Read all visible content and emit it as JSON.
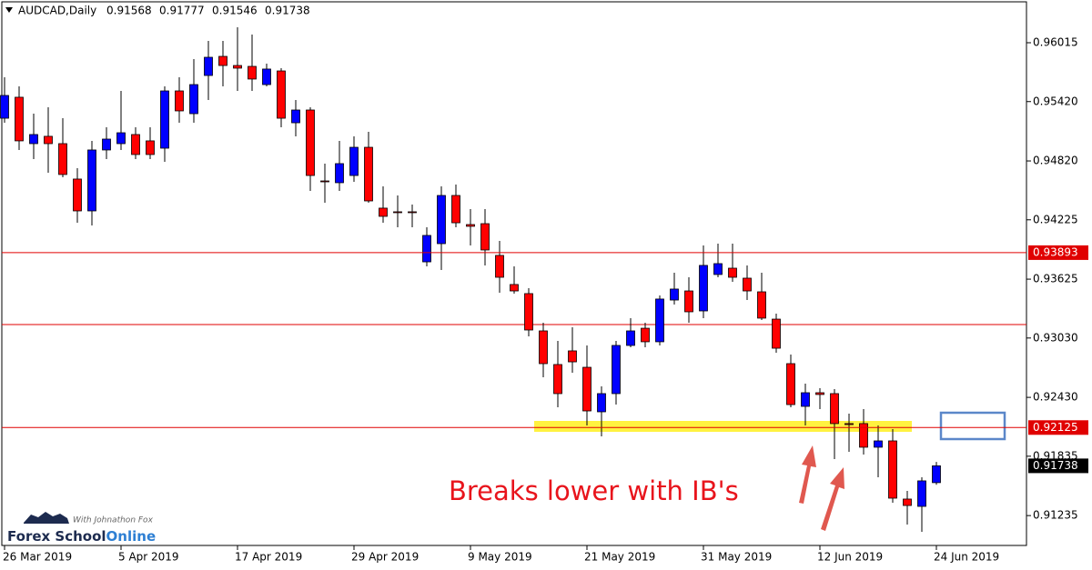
{
  "chart_data": {
    "type": "candlestick",
    "title": "AUDCAD,Daily",
    "categories": [
      "26 Mar 2019",
      null,
      null,
      null,
      null,
      null,
      null,
      null,
      "5 Apr 2019",
      null,
      null,
      null,
      null,
      null,
      null,
      null,
      "17 Apr 2019",
      null,
      null,
      null,
      null,
      null,
      null,
      null,
      "29 Apr 2019",
      null,
      null,
      null,
      null,
      null,
      null,
      null,
      "9 May 2019",
      null,
      null,
      null,
      null,
      null,
      null,
      null,
      "21 May 2019",
      null,
      null,
      null,
      null,
      null,
      null,
      null,
      "31 May 2019",
      null,
      null,
      null,
      null,
      null,
      null,
      null,
      "12 Jun 2019",
      null,
      null,
      null,
      null,
      null,
      null,
      null,
      "24 Jun 2019"
    ],
    "open": [
      0.95252,
      0.95464,
      0.94995,
      0.95069,
      0.94995,
      0.94637,
      0.94315,
      0.94931,
      0.94995,
      0.95087,
      0.95023,
      0.94949,
      0.95528,
      0.95298,
      0.95684,
      0.95877,
      0.95785,
      0.95776,
      0.95592,
      0.9573,
      0.95206,
      0.95335,
      0.94618,
      0.946,
      0.94673,
      0.94958,
      0.94343,
      0.94306,
      0.94306,
      0.938,
      0.93984,
      0.94471,
      0.94177,
      0.94186,
      0.93865,
      0.93571,
      0.93479,
      0.93102,
      0.92762,
      0.929,
      0.92734,
      0.92284,
      0.92468,
      0.92955,
      0.93129,
      0.92992,
      0.93414,
      0.93506,
      0.93304,
      0.93672,
      0.93736,
      0.93635,
      0.93497,
      0.93221,
      0.92771,
      0.92339,
      0.92477,
      0.92468,
      0.92165,
      0.92165,
      0.91926,
      0.9199,
      0.91402,
      0.91328,
      0.91568
    ],
    "high": [
      0.95666,
      0.95574,
      0.95298,
      0.95363,
      0.95252,
      0.94747,
      0.95023,
      0.9516,
      0.95528,
      0.9516,
      0.9516,
      0.95574,
      0.95666,
      0.9585,
      0.96033,
      0.96033,
      0.96171,
      0.96098,
      0.95804,
      0.95758,
      0.95436,
      0.95363,
      0.94793,
      0.95023,
      0.95069,
      0.95114,
      0.94563,
      0.94471,
      0.94379,
      0.9415,
      0.94563,
      0.94581,
      0.94333,
      0.94333,
      0.94012,
      0.93754,
      0.93534,
      0.93185,
      0.93001,
      0.93139,
      0.92955,
      0.92541,
      0.93001,
      0.93231,
      0.93185,
      0.9346,
      0.9369,
      0.93644,
      0.93966,
      0.93984,
      0.93984,
      0.93764,
      0.9369,
      0.93276,
      0.92863,
      0.92569,
      0.92523,
      0.92514,
      0.92266,
      0.92312,
      0.92146,
      0.92109,
      0.91484,
      0.91622,
      0.91777
    ],
    "low": [
      0.95206,
      0.94931,
      0.94839,
      0.94701,
      0.94655,
      0.94195,
      0.94168,
      0.94839,
      0.94931,
      0.94839,
      0.94839,
      0.94811,
      0.95206,
      0.95206,
      0.95436,
      0.95574,
      0.95528,
      0.95528,
      0.95574,
      0.9516,
      0.95069,
      0.94517,
      0.94398,
      0.94517,
      0.94609,
      0.94398,
      0.94195,
      0.9415,
      0.9415,
      0.93754,
      0.93718,
      0.9415,
      0.93966,
      0.93764,
      0.93488,
      0.93479,
      0.93047,
      0.92633,
      0.9233,
      0.92679,
      0.92146,
      0.92036,
      0.92357,
      0.92936,
      0.92936,
      0.92955,
      0.93368,
      0.93185,
      0.93231,
      0.93644,
      0.93598,
      0.93414,
      0.93212,
      0.92881,
      0.9233,
      0.92146,
      0.92312,
      0.91806,
      0.9188,
      0.91852,
      0.91622,
      0.91365,
      0.91144,
      0.91071,
      0.91546
    ],
    "close": [
      0.95482,
      0.95023,
      0.95087,
      0.94995,
      0.94683,
      0.94315,
      0.94931,
      0.95041,
      0.95105,
      0.94885,
      0.94885,
      0.95528,
      0.95326,
      0.95592,
      0.95868,
      0.95785,
      0.95758,
      0.95648,
      0.95749,
      0.95252,
      0.95335,
      0.94673,
      0.94609,
      0.94793,
      0.94958,
      0.94416,
      0.9426,
      0.94297,
      0.94297,
      0.94067,
      0.94471,
      0.94195,
      0.94159,
      0.9392,
      0.93644,
      0.93506,
      0.93111,
      0.92771,
      0.92468,
      0.92789,
      0.92293,
      0.92468,
      0.92955,
      0.93102,
      0.92992,
      0.93424,
      0.93525,
      0.93295,
      0.93764,
      0.93782,
      0.93644,
      0.93506,
      0.93231,
      0.92927,
      0.92357,
      0.92477,
      0.92459,
      0.92165,
      0.92155,
      0.91926,
      0.9199,
      0.91411,
      0.91337,
      0.91586,
      0.91738
    ],
    "up_color": "#0000ff",
    "down_color": "#ff0000",
    "ylim": [
      0.90933,
      0.96447
    ],
    "yticks": [
      0.96015,
      {
        "value": 0.9542,
        "label": "0.95420"
      },
      {
        "value": 0.9482,
        "label": "0.94820"
      },
      0.94225,
      0.93625,
      {
        "value": 0.9303,
        "label": "0.93030"
      },
      {
        "value": 0.9243,
        "label": "0.92430"
      },
      0.91835,
      0.91235
    ],
    "levels": [
      {
        "value": 0.93893,
        "color": "#e00000"
      },
      {
        "value": 0.92125,
        "color": "#e00000"
      }
    ],
    "annotation": "Breaks lower with IB's",
    "logo": {
      "brand": "Forex School",
      "brand_suffix": "Online",
      "tagline": "With Johnathon Fox"
    }
  }
}
